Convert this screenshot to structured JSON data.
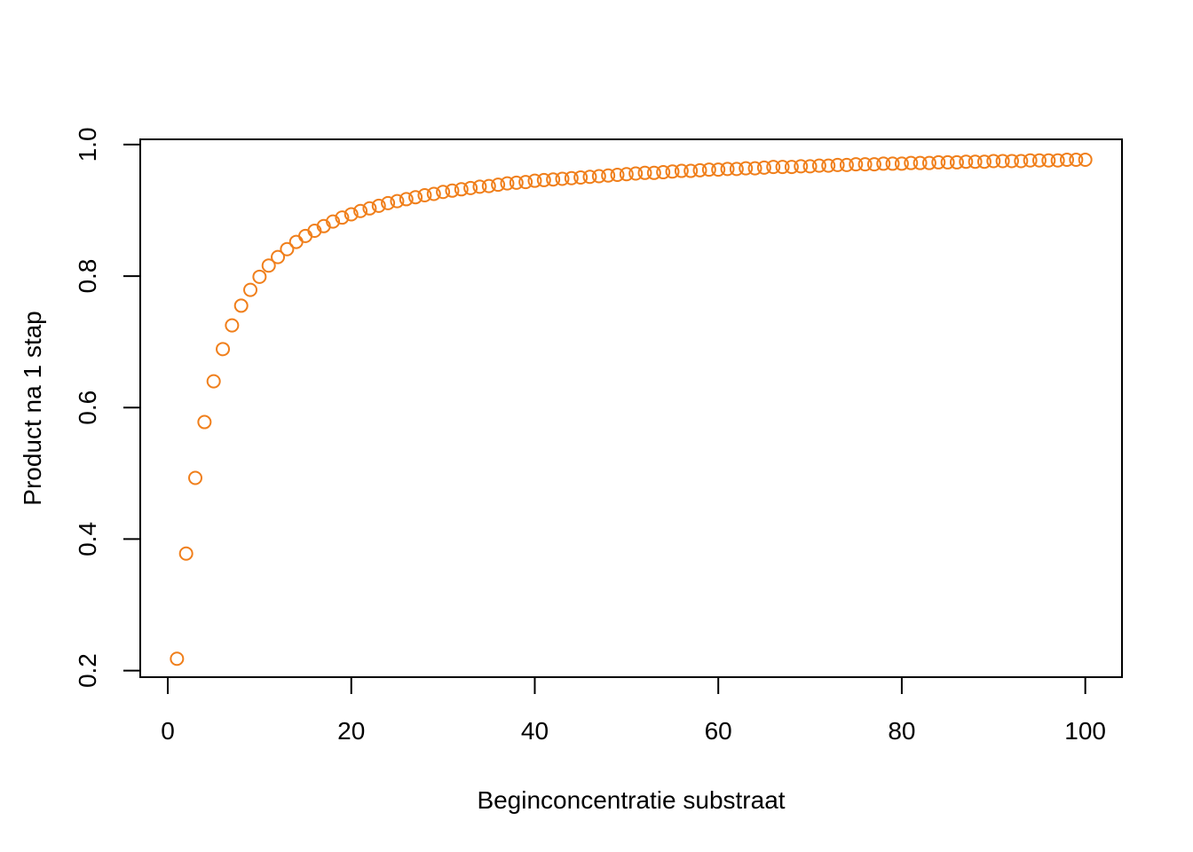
{
  "chart_data": {
    "type": "scatter",
    "title": "",
    "xlabel": "Beginconcentratie substraat",
    "ylabel": "Product na 1 stap",
    "xlim": [
      -3,
      104
    ],
    "ylim": [
      0.19,
      1.008
    ],
    "xticks": [
      0,
      20,
      40,
      60,
      80,
      100
    ],
    "xtick_labels": [
      "0",
      "20",
      "40",
      "60",
      "80",
      "100"
    ],
    "yticks": [
      0.2,
      0.4,
      0.6,
      0.8,
      1.0
    ],
    "ytick_labels": [
      "0.2",
      "0.4",
      "0.6",
      "0.8",
      "1.0"
    ],
    "grid": false,
    "legend": "none",
    "marker": "open-circle",
    "color": "#F07F1B",
    "series": [
      {
        "x": [
          1,
          2,
          3,
          4,
          5,
          6,
          7,
          8,
          9,
          10,
          11,
          12,
          13,
          14,
          15,
          16,
          17,
          18,
          19,
          20,
          21,
          22,
          23,
          24,
          25,
          26,
          27,
          28,
          29,
          30,
          31,
          32,
          33,
          34,
          35,
          36,
          37,
          38,
          39,
          40,
          41,
          42,
          43,
          44,
          45,
          46,
          47,
          48,
          49,
          50,
          51,
          52,
          53,
          54,
          55,
          56,
          57,
          58,
          59,
          60,
          61,
          62,
          63,
          64,
          65,
          66,
          67,
          68,
          69,
          70,
          71,
          72,
          73,
          74,
          75,
          76,
          77,
          78,
          79,
          80,
          81,
          82,
          83,
          84,
          85,
          86,
          87,
          88,
          89,
          90,
          91,
          92,
          93,
          94,
          95,
          96,
          97,
          98,
          99,
          100
        ],
        "y": [
          0.218,
          0.378,
          0.493,
          0.578,
          0.64,
          0.689,
          0.725,
          0.755,
          0.779,
          0.799,
          0.816,
          0.829,
          0.841,
          0.852,
          0.861,
          0.869,
          0.876,
          0.883,
          0.889,
          0.894,
          0.899,
          0.903,
          0.907,
          0.911,
          0.914,
          0.917,
          0.92,
          0.923,
          0.925,
          0.928,
          0.93,
          0.932,
          0.934,
          0.936,
          0.937,
          0.939,
          0.941,
          0.942,
          0.943,
          0.945,
          0.946,
          0.947,
          0.948,
          0.949,
          0.95,
          0.951,
          0.952,
          0.953,
          0.954,
          0.955,
          0.956,
          0.957,
          0.957,
          0.958,
          0.959,
          0.96,
          0.96,
          0.961,
          0.962,
          0.962,
          0.963,
          0.963,
          0.964,
          0.964,
          0.965,
          0.966,
          0.966,
          0.966,
          0.967,
          0.967,
          0.968,
          0.968,
          0.969,
          0.969,
          0.97,
          0.97,
          0.97,
          0.971,
          0.971,
          0.971,
          0.972,
          0.972,
          0.972,
          0.973,
          0.973,
          0.973,
          0.974,
          0.974,
          0.974,
          0.975,
          0.975,
          0.975,
          0.975,
          0.976,
          0.976,
          0.976,
          0.976,
          0.977,
          0.977,
          0.977
        ]
      }
    ]
  }
}
